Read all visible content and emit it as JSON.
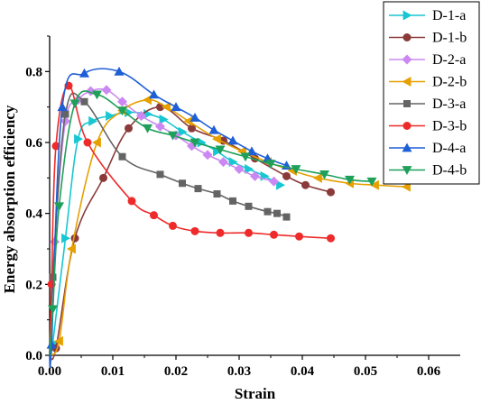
{
  "chart_data": {
    "type": "line",
    "title": "",
    "xlabel": "Strain",
    "ylabel": "Energy absorption efficiency",
    "xlim": [
      0,
      0.065
    ],
    "ylim": [
      0,
      0.9
    ],
    "xticks": [
      "0.00",
      "0.01",
      "0.02",
      "0.03",
      "0.04",
      "0.05",
      "0.06"
    ],
    "yticks": [
      "0.0",
      "0.2",
      "0.4",
      "0.6",
      "0.8"
    ],
    "legend_position": "top-right",
    "series": [
      {
        "name": "D-1-a",
        "color": "#17c7d2",
        "marker": "triangle-right",
        "x": [
          0.0005,
          0.0025,
          0.0045,
          0.0068,
          0.0095,
          0.0125,
          0.0155,
          0.018,
          0.021,
          0.024,
          0.0265,
          0.029,
          0.0315,
          0.034,
          0.0365
        ],
        "y": [
          0.035,
          0.33,
          0.61,
          0.66,
          0.675,
          0.685,
          0.68,
          0.665,
          0.63,
          0.6,
          0.575,
          0.545,
          0.525,
          0.505,
          0.48
        ]
      },
      {
        "name": "D-1-b",
        "color": "#8b3a3a",
        "marker": "circle",
        "x": [
          0.001,
          0.004,
          0.0085,
          0.0125,
          0.0175,
          0.0225,
          0.0275,
          0.0325,
          0.0375,
          0.0405,
          0.0445
        ],
        "y": [
          0.02,
          0.33,
          0.5,
          0.64,
          0.7,
          0.64,
          0.605,
          0.555,
          0.505,
          0.48,
          0.46
        ]
      },
      {
        "name": "D-2-a",
        "color": "#cc88f2",
        "marker": "diamond",
        "x": [
          0.0008,
          0.0025,
          0.0045,
          0.0065,
          0.009,
          0.0115,
          0.0145,
          0.0175,
          0.02,
          0.0225,
          0.025,
          0.0275,
          0.03,
          0.0325,
          0.0355
        ],
        "y": [
          0.32,
          0.66,
          0.72,
          0.745,
          0.748,
          0.715,
          0.675,
          0.645,
          0.62,
          0.59,
          0.565,
          0.545,
          0.525,
          0.505,
          0.49
        ]
      },
      {
        "name": "D-2-b",
        "color": "#e6a000",
        "marker": "triangle-left",
        "x": [
          0.0015,
          0.0035,
          0.0075,
          0.0115,
          0.0155,
          0.0185,
          0.022,
          0.0265,
          0.0305,
          0.0345,
          0.0385,
          0.0425,
          0.0475,
          0.0515,
          0.0565
        ],
        "y": [
          0.04,
          0.3,
          0.6,
          0.69,
          0.72,
          0.7,
          0.66,
          0.61,
          0.575,
          0.545,
          0.52,
          0.5,
          0.485,
          0.48,
          0.475
        ]
      },
      {
        "name": "D-3-a",
        "color": "#646464",
        "marker": "square",
        "x": [
          0.0005,
          0.0025,
          0.0055,
          0.0115,
          0.0175,
          0.021,
          0.0235,
          0.0265,
          0.029,
          0.0315,
          0.0345,
          0.036,
          0.0375
        ],
        "y": [
          0.22,
          0.68,
          0.715,
          0.56,
          0.51,
          0.485,
          0.47,
          0.455,
          0.435,
          0.42,
          0.405,
          0.4,
          0.39
        ]
      },
      {
        "name": "D-3-b",
        "color": "#ee2a2a",
        "marker": "circle",
        "x": [
          0.0003,
          0.001,
          0.003,
          0.006,
          0.013,
          0.0165,
          0.0195,
          0.023,
          0.027,
          0.0315,
          0.0355,
          0.0395,
          0.0445
        ],
        "y": [
          0.2,
          0.59,
          0.76,
          0.6,
          0.435,
          0.395,
          0.365,
          0.35,
          0.345,
          0.345,
          0.34,
          0.335,
          0.33
        ]
      },
      {
        "name": "D-4-a",
        "color": "#1f5fd6",
        "marker": "triangle-up",
        "x": [
          0.0003,
          0.002,
          0.0055,
          0.011,
          0.0165,
          0.02,
          0.023,
          0.026,
          0.029,
          0.032,
          0.0345,
          0.0375
        ],
        "y": [
          0.03,
          0.7,
          0.795,
          0.8,
          0.735,
          0.7,
          0.67,
          0.635,
          0.605,
          0.575,
          0.555,
          0.535
        ]
      },
      {
        "name": "D-4-b",
        "color": "#1ea05a",
        "marker": "triangle-down",
        "x": [
          0.0005,
          0.0015,
          0.004,
          0.0075,
          0.0115,
          0.0155,
          0.0195,
          0.023,
          0.027,
          0.031,
          0.035,
          0.039,
          0.0435,
          0.0475,
          0.051
        ],
        "y": [
          0.13,
          0.42,
          0.71,
          0.735,
          0.69,
          0.64,
          0.62,
          0.6,
          0.58,
          0.56,
          0.54,
          0.525,
          0.51,
          0.495,
          0.49
        ]
      }
    ]
  }
}
